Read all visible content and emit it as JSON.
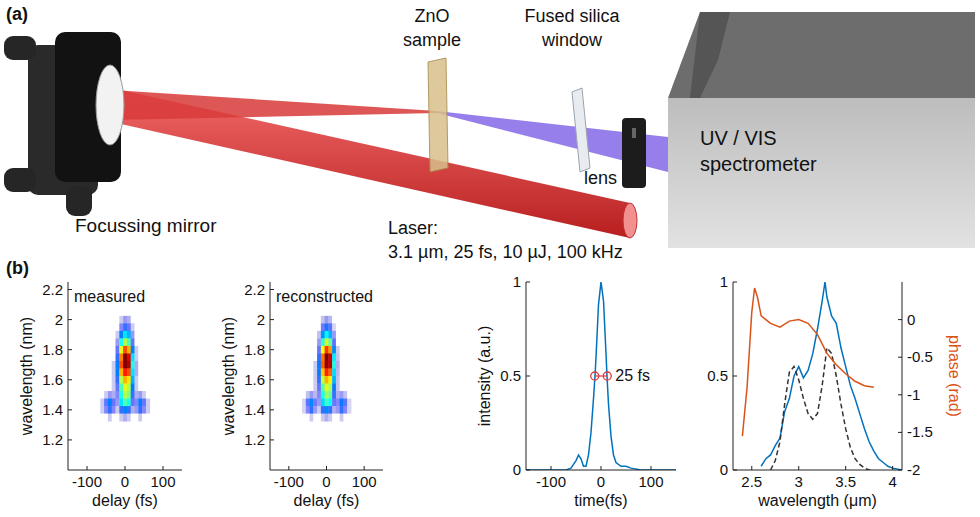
{
  "panel_a": {
    "label": "(a)",
    "labels": {
      "mirror": "Focussing mirror",
      "sample": [
        "ZnO",
        "sample"
      ],
      "window": [
        "Fused silica",
        "window"
      ],
      "lens": "lens",
      "spectrometer": [
        "UV / VIS",
        "spectrometer"
      ],
      "laser": [
        "Laser:",
        "3.1 µm, 25 fs, 10 µJ, 100 kHz"
      ]
    }
  },
  "panel_b_label": "(b)",
  "chart_data": [
    {
      "type": "heatmap",
      "title": "measured",
      "x_label": "delay (fs)",
      "y_label": "wavelength (nm)",
      "xlim": [
        -150,
        150
      ],
      "ylim": [
        1.0,
        2.25
      ],
      "xticks": [
        -100,
        0,
        100
      ],
      "yticks": [
        1.2,
        1.4,
        1.6,
        1.8,
        2,
        2.2
      ],
      "x": [
        -60,
        -50,
        -40,
        -30,
        -20,
        -10,
        0,
        10,
        20,
        30,
        40,
        50,
        60
      ],
      "y": [
        2.05,
        2,
        1.95,
        1.9,
        1.85,
        1.8,
        1.75,
        1.7,
        1.65,
        1.6,
        1.55,
        1.5,
        1.45,
        1.4,
        1.35
      ],
      "cells": [
        [
          0,
          0,
          0,
          0,
          0,
          0,
          0,
          0,
          0,
          0,
          0,
          0,
          0
        ],
        [
          0,
          0,
          0,
          0,
          0,
          0.05,
          0.1,
          0.08,
          0,
          0,
          0,
          0,
          0
        ],
        [
          0,
          0,
          0,
          0,
          0,
          0.12,
          0.2,
          0.15,
          0.05,
          0,
          0,
          0,
          0
        ],
        [
          0,
          0,
          0,
          0,
          0.05,
          0.25,
          0.35,
          0.3,
          0.1,
          0,
          0,
          0,
          0
        ],
        [
          0,
          0,
          0,
          0,
          0.1,
          0.4,
          0.55,
          0.45,
          0.15,
          0,
          0,
          0,
          0
        ],
        [
          0,
          0,
          0,
          0,
          0.15,
          0.6,
          0.8,
          0.7,
          0.25,
          0.05,
          0,
          0,
          0
        ],
        [
          0,
          0,
          0,
          0,
          0.2,
          0.75,
          1,
          0.9,
          0.35,
          0.05,
          0,
          0,
          0
        ],
        [
          0,
          0,
          0,
          0.05,
          0.25,
          0.8,
          1,
          0.95,
          0.4,
          0.08,
          0,
          0,
          0
        ],
        [
          0,
          0,
          0,
          0.05,
          0.25,
          0.7,
          0.85,
          0.8,
          0.35,
          0.08,
          0,
          0,
          0
        ],
        [
          0,
          0,
          0,
          0.05,
          0.2,
          0.55,
          0.7,
          0.65,
          0.3,
          0.05,
          0,
          0,
          0
        ],
        [
          0,
          0,
          0.02,
          0.05,
          0.15,
          0.45,
          0.6,
          0.55,
          0.25,
          0.05,
          0.02,
          0,
          0
        ],
        [
          0,
          0.05,
          0.1,
          0.08,
          0.12,
          0.4,
          0.55,
          0.5,
          0.2,
          0.08,
          0.1,
          0.05,
          0
        ],
        [
          0.05,
          0.15,
          0.25,
          0.15,
          0.1,
          0.35,
          0.45,
          0.4,
          0.15,
          0.12,
          0.25,
          0.15,
          0.05
        ],
        [
          0.05,
          0.12,
          0.2,
          0.12,
          0.05,
          0.2,
          0.25,
          0.2,
          0.08,
          0.1,
          0.2,
          0.12,
          0.05
        ],
        [
          0,
          0.03,
          0.05,
          0.03,
          0,
          0.05,
          0.08,
          0.05,
          0.02,
          0.03,
          0.05,
          0.03,
          0
        ]
      ]
    },
    {
      "type": "heatmap",
      "title": "reconstructed",
      "x_label": "delay (fs)",
      "y_label": "wavelength (nm)",
      "xlim": [
        -150,
        150
      ],
      "ylim": [
        1.0,
        2.25
      ],
      "xticks": [
        -100,
        0,
        100
      ],
      "yticks": [
        1.2,
        1.4,
        1.6,
        1.8,
        2,
        2.2
      ],
      "x": [
        -60,
        -50,
        -40,
        -30,
        -20,
        -10,
        0,
        10,
        20,
        30,
        40,
        50,
        60
      ],
      "y": [
        2.05,
        2,
        1.95,
        1.9,
        1.85,
        1.8,
        1.75,
        1.7,
        1.65,
        1.6,
        1.55,
        1.5,
        1.45,
        1.4,
        1.35
      ],
      "cells": [
        [
          0,
          0,
          0,
          0,
          0,
          0,
          0,
          0,
          0,
          0,
          0,
          0,
          0
        ],
        [
          0,
          0,
          0,
          0,
          0,
          0.06,
          0.1,
          0.07,
          0,
          0,
          0,
          0,
          0
        ],
        [
          0,
          0,
          0,
          0,
          0.02,
          0.14,
          0.22,
          0.16,
          0.04,
          0,
          0,
          0,
          0
        ],
        [
          0,
          0,
          0,
          0,
          0.06,
          0.27,
          0.37,
          0.3,
          0.1,
          0,
          0,
          0,
          0
        ],
        [
          0,
          0,
          0,
          0,
          0.1,
          0.42,
          0.58,
          0.47,
          0.16,
          0.02,
          0,
          0,
          0
        ],
        [
          0,
          0,
          0,
          0,
          0.15,
          0.62,
          0.82,
          0.72,
          0.26,
          0.05,
          0,
          0,
          0
        ],
        [
          0,
          0,
          0,
          0.02,
          0.2,
          0.76,
          1,
          0.92,
          0.36,
          0.06,
          0,
          0,
          0
        ],
        [
          0,
          0,
          0,
          0.05,
          0.24,
          0.78,
          0.98,
          0.94,
          0.4,
          0.08,
          0,
          0,
          0
        ],
        [
          0,
          0,
          0,
          0.05,
          0.24,
          0.68,
          0.84,
          0.78,
          0.34,
          0.07,
          0,
          0,
          0
        ],
        [
          0,
          0,
          0,
          0.05,
          0.2,
          0.56,
          0.7,
          0.64,
          0.3,
          0.06,
          0,
          0,
          0
        ],
        [
          0,
          0,
          0.03,
          0.05,
          0.15,
          0.46,
          0.6,
          0.54,
          0.24,
          0.06,
          0.03,
          0,
          0
        ],
        [
          0,
          0.06,
          0.1,
          0.07,
          0.12,
          0.4,
          0.53,
          0.48,
          0.2,
          0.08,
          0.1,
          0.06,
          0
        ],
        [
          0.04,
          0.16,
          0.26,
          0.14,
          0.1,
          0.34,
          0.44,
          0.38,
          0.15,
          0.12,
          0.24,
          0.16,
          0.04
        ],
        [
          0.04,
          0.12,
          0.2,
          0.1,
          0.05,
          0.2,
          0.26,
          0.2,
          0.08,
          0.1,
          0.2,
          0.12,
          0.04
        ],
        [
          0,
          0.03,
          0.05,
          0.03,
          0,
          0.05,
          0.08,
          0.05,
          0.02,
          0.03,
          0.05,
          0.03,
          0
        ]
      ]
    },
    {
      "type": "line",
      "x_label": "time(fs)",
      "y_label": "intensity (a.u.)",
      "xlim": [
        -150,
        150
      ],
      "ylim": [
        0,
        1
      ],
      "xticks": [
        -100,
        0,
        100
      ],
      "yticks": [
        0,
        0.5,
        1
      ],
      "x": [
        -150,
        -120,
        -90,
        -70,
        -60,
        -50,
        -45,
        -40,
        -35,
        -30,
        -25,
        -20,
        -15,
        -12,
        -10,
        -5,
        0,
        5,
        10,
        12,
        15,
        20,
        25,
        30,
        40,
        50,
        60,
        80,
        100,
        150
      ],
      "series": [
        {
          "color": "#0072bd",
          "line_style": "solid",
          "values": [
            0,
            0,
            0,
            0,
            0.01,
            0.05,
            0.08,
            0.06,
            0.02,
            0.02,
            0.08,
            0.2,
            0.38,
            0.5,
            0.6,
            0.88,
            1,
            0.9,
            0.62,
            0.5,
            0.35,
            0.18,
            0.08,
            0.04,
            0.02,
            0.02,
            0.01,
            0,
            0,
            0
          ]
        }
      ],
      "annotations": [
        {
          "text": "25 fs",
          "x": [
            -12.5,
            12.5
          ],
          "y": [
            0.5,
            0.5
          ],
          "color": "#e03a3a",
          "marker": "circle"
        }
      ]
    },
    {
      "type": "line",
      "x_label": "wavelength (μm)",
      "y2_label": "phase (rad)",
      "xlim": [
        2.3,
        4.1
      ],
      "ylim": [
        0,
        1
      ],
      "y2lim": [
        -2,
        0.5
      ],
      "xticks": [
        2.5,
        3,
        3.5,
        4
      ],
      "yticks": [
        0,
        0.5,
        1
      ],
      "y2ticks": [
        0,
        -0.5,
        -1,
        -1.5,
        -2
      ],
      "series": [
        {
          "color": "#0072bd",
          "line_style": "solid",
          "x": [
            2.6,
            2.65,
            2.7,
            2.75,
            2.8,
            2.85,
            2.9,
            2.95,
            3.0,
            3.05,
            3.1,
            3.15,
            3.2,
            3.25,
            3.28,
            3.3,
            3.35,
            3.4,
            3.45,
            3.5,
            3.55,
            3.6,
            3.65,
            3.7,
            3.75,
            3.8,
            3.85,
            3.9,
            3.95,
            4.0,
            4.1
          ],
          "values": [
            0.02,
            0.06,
            0.08,
            0.13,
            0.17,
            0.31,
            0.38,
            0.5,
            0.55,
            0.49,
            0.53,
            0.62,
            0.75,
            0.9,
            1,
            0.92,
            0.82,
            0.78,
            0.65,
            0.55,
            0.45,
            0.38,
            0.3,
            0.22,
            0.15,
            0.1,
            0.06,
            0.04,
            0.02,
            0.01,
            0
          ]
        },
        {
          "color": "#333333",
          "line_style": "dashed",
          "x": [
            2.7,
            2.75,
            2.8,
            2.85,
            2.9,
            2.95,
            3.0,
            3.05,
            3.1,
            3.15,
            3.2,
            3.25,
            3.3,
            3.35,
            3.4,
            3.45,
            3.5,
            3.55,
            3.6,
            3.65,
            3.7,
            3.75,
            3.8
          ],
          "values": [
            0,
            0.05,
            0.15,
            0.35,
            0.52,
            0.55,
            0.48,
            0.38,
            0.3,
            0.27,
            0.3,
            0.45,
            0.65,
            0.62,
            0.5,
            0.35,
            0.22,
            0.12,
            0.06,
            0.03,
            0.01,
            0,
            0
          ]
        },
        {
          "color": "#d95319",
          "line_style": "solid",
          "axis": "y2",
          "x": [
            2.4,
            2.45,
            2.5,
            2.53,
            2.56,
            2.6,
            2.65,
            2.7,
            2.8,
            2.9,
            3.0,
            3.1,
            3.2,
            3.3,
            3.4,
            3.5,
            3.6,
            3.7,
            3.8
          ],
          "values": [
            -1.55,
            -0.9,
            0.1,
            0.42,
            0.3,
            0.05,
            0,
            -0.05,
            -0.1,
            -0.02,
            0,
            -0.05,
            -0.2,
            -0.45,
            -0.6,
            -0.72,
            -0.82,
            -0.88,
            -0.9
          ]
        }
      ]
    }
  ]
}
